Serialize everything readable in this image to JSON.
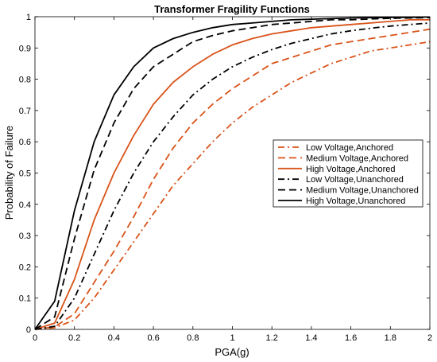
{
  "chart_data": {
    "type": "line",
    "title": "Transformer Fragility Functions",
    "xlabel": "PGA(g)",
    "ylabel": "Probability of Failure",
    "xlim": [
      0,
      2
    ],
    "ylim": [
      0,
      1
    ],
    "xticks": [
      "0",
      "0.2",
      "0.4",
      "0.6",
      "0.8",
      "1",
      "1.2",
      "1.4",
      "1.6",
      "1.8",
      "2"
    ],
    "yticks": [
      "0",
      "0.1",
      "0.2",
      "0.3",
      "0.4",
      "0.5",
      "0.6",
      "0.7",
      "0.8",
      "0.9",
      "1"
    ],
    "grid": false,
    "legend_position": "right",
    "x": [
      0,
      0.1,
      0.2,
      0.3,
      0.4,
      0.5,
      0.6,
      0.7,
      0.8,
      0.9,
      1.0,
      1.1,
      1.2,
      1.3,
      1.4,
      1.5,
      1.6,
      1.7,
      1.8,
      1.9,
      2.0
    ],
    "series": [
      {
        "name": "Low Voltage,Anchored",
        "color": "#d95319",
        "dash": "dashdot",
        "values": [
          0,
          0.005,
          0.03,
          0.1,
          0.19,
          0.28,
          0.37,
          0.46,
          0.53,
          0.6,
          0.66,
          0.71,
          0.75,
          0.79,
          0.82,
          0.85,
          0.87,
          0.89,
          0.9,
          0.91,
          0.92
        ]
      },
      {
        "name": "Medium Voltage,Anchored",
        "color": "#d95319",
        "dash": "dash",
        "values": [
          0,
          0.008,
          0.05,
          0.15,
          0.25,
          0.36,
          0.48,
          0.58,
          0.66,
          0.72,
          0.77,
          0.81,
          0.85,
          0.87,
          0.89,
          0.91,
          0.92,
          0.93,
          0.94,
          0.95,
          0.96
        ]
      },
      {
        "name": "High Voltage,Anchored",
        "color": "#d95319",
        "dash": "solid",
        "values": [
          0,
          0.02,
          0.16,
          0.35,
          0.5,
          0.62,
          0.72,
          0.79,
          0.84,
          0.88,
          0.91,
          0.93,
          0.945,
          0.955,
          0.965,
          0.97,
          0.975,
          0.98,
          0.985,
          0.99,
          0.99
        ]
      },
      {
        "name": "Low Voltage,Unanchored",
        "color": "#000000",
        "dash": "dashdot",
        "values": [
          0,
          0.01,
          0.1,
          0.24,
          0.38,
          0.5,
          0.6,
          0.68,
          0.75,
          0.8,
          0.84,
          0.87,
          0.895,
          0.915,
          0.93,
          0.945,
          0.955,
          0.963,
          0.97,
          0.975,
          0.98
        ]
      },
      {
        "name": "Medium Voltage,Unanchored",
        "color": "#000000",
        "dash": "dash",
        "values": [
          0,
          0.04,
          0.29,
          0.51,
          0.66,
          0.77,
          0.84,
          0.88,
          0.92,
          0.94,
          0.955,
          0.965,
          0.975,
          0.98,
          0.985,
          0.99,
          0.99,
          0.993,
          0.995,
          0.996,
          0.997
        ]
      },
      {
        "name": "High Voltage,Unanchored",
        "color": "#000000",
        "dash": "solid",
        "values": [
          0,
          0.09,
          0.38,
          0.6,
          0.75,
          0.84,
          0.9,
          0.93,
          0.95,
          0.965,
          0.975,
          0.98,
          0.985,
          0.99,
          0.992,
          0.994,
          0.996,
          0.997,
          0.998,
          0.998,
          0.999
        ]
      }
    ]
  }
}
